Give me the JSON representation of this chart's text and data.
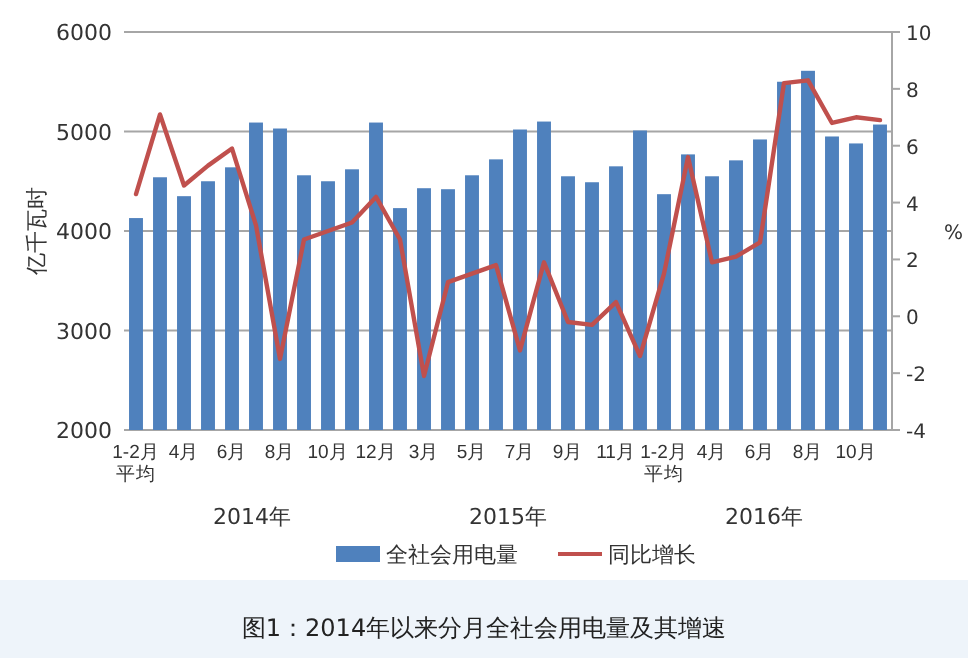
{
  "chart_data": {
    "type": "bar",
    "title": "图1：2014年以来分月全社会用电量及其增速",
    "ylabel": "亿千瓦时",
    "y2label": "%",
    "categories": [
      "1-2月平均",
      null,
      "4月",
      null,
      "6月",
      null,
      "8月",
      null,
      "10月",
      null,
      "12月",
      null,
      "3月",
      null,
      "5月",
      null,
      "7月",
      null,
      "9月",
      null,
      "11月",
      null,
      "1-2月平均",
      null,
      "4月",
      null,
      "6月",
      null,
      "8月",
      null,
      "10月",
      null
    ],
    "annotations": [
      "2014年",
      "2015年",
      "2016年"
    ],
    "series": [
      {
        "name": "全社会用电量",
        "color": "#4f81bd",
        "values": [
          4130,
          4540,
          4350,
          4500,
          4640,
          5090,
          5030,
          4560,
          4500,
          4620,
          5090,
          4230,
          4430,
          4420,
          4560,
          4720,
          5020,
          5100,
          4550,
          4490,
          4650,
          5010,
          4370,
          4770,
          4550,
          4710,
          4920,
          5500,
          5610,
          4950,
          4880,
          5070
        ]
      },
      {
        "name": "同比增长",
        "type": "line",
        "axis": "y2",
        "color": "#c0504d",
        "values": [
          4.3,
          7.1,
          4.6,
          5.3,
          5.9,
          3.2,
          -1.5,
          2.7,
          3.0,
          3.3,
          4.2,
          2.7,
          -2.1,
          1.2,
          1.5,
          1.8,
          -1.2,
          1.9,
          -0.2,
          -0.3,
          0.5,
          -1.4,
          1.5,
          5.6,
          1.9,
          2.1,
          2.6,
          8.2,
          8.3,
          6.8,
          7.0,
          6.9
        ]
      }
    ],
    "ylim": [
      2000,
      6000
    ],
    "yticks": [
      2000,
      3000,
      4000,
      5000,
      6000
    ],
    "y2lim": [
      -4,
      10
    ],
    "y2ticks": [
      -4,
      -2,
      0,
      2,
      4,
      6,
      8,
      10
    ],
    "grid": "y",
    "legend": "bottom"
  }
}
